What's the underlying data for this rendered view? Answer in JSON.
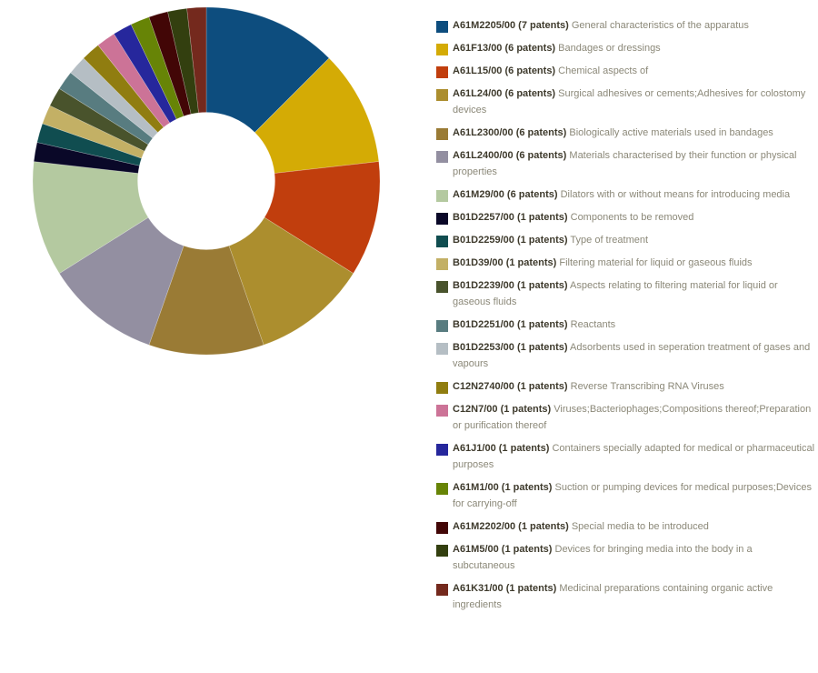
{
  "colors": {
    "background": "#ffffff",
    "legend_code_text": "#3e3a2c",
    "legend_desc_text": "#8b8878"
  },
  "chart_data": {
    "type": "pie",
    "subtype": "donut",
    "direction": "clockwise",
    "start_angle_deg": 0,
    "inner_radius_ratio": 0.4,
    "legend_position": "right",
    "unit": "patents",
    "total": 56,
    "series": [
      {
        "code": "A61M2205/00",
        "value": 7,
        "label": "A61M2205/00 (7 patents)",
        "description": "General characteristics of the apparatus",
        "color": "#0d4d7e"
      },
      {
        "code": "A61F13/00",
        "value": 6,
        "label": "A61F13/00 (6 patents)",
        "description": "Bandages or dressings",
        "color": "#d4ab05"
      },
      {
        "code": "A61L15/00",
        "value": 6,
        "label": "A61L15/00 (6 patents)",
        "description": "Chemical aspects of",
        "color": "#c13e0d"
      },
      {
        "code": "A61L24/00",
        "value": 6,
        "label": "A61L24/00 (6 patents)",
        "description": "Surgical adhesives or cements;Adhesives for colostomy devices",
        "color": "#ac8e2e"
      },
      {
        "code": "A61L2300/00",
        "value": 6,
        "label": "A61L2300/00 (6 patents)",
        "description": "Biologically active materials used in bandages",
        "color": "#9a7b35"
      },
      {
        "code": "A61L2400/00",
        "value": 6,
        "label": "A61L2400/00 (6 patents)",
        "description": "Materials characterised by their function or physical properties",
        "color": "#938fa1"
      },
      {
        "code": "A61M29/00",
        "value": 6,
        "label": "A61M29/00 (6 patents)",
        "description": "Dilators with or without means for introducing media",
        "color": "#b4c9a0"
      },
      {
        "code": "B01D2257/00",
        "value": 1,
        "label": "B01D2257/00 (1 patents)",
        "description": "Components to be removed",
        "color": "#0a0828"
      },
      {
        "code": "B01D2259/00",
        "value": 1,
        "label": "B01D2259/00 (1 patents)",
        "description": "Type of treatment",
        "color": "#104d50"
      },
      {
        "code": "B01D39/00",
        "value": 1,
        "label": "B01D39/00 (1 patents)",
        "description": "Filtering material for liquid or gaseous fluids",
        "color": "#c3b065"
      },
      {
        "code": "B01D2239/00",
        "value": 1,
        "label": "B01D2239/00 (1 patents)",
        "description": "Aspects relating to filtering material for liquid or gaseous fluids",
        "color": "#49532c"
      },
      {
        "code": "B01D2251/00",
        "value": 1,
        "label": "B01D2251/00 (1 patents)",
        "description": "Reactants",
        "color": "#587c80"
      },
      {
        "code": "B01D2253/00",
        "value": 1,
        "label": "B01D2253/00 (1 patents)",
        "description": "Adsorbents used in seperation treatment of gases and vapours",
        "color": "#b5bec4"
      },
      {
        "code": "C12N2740/00",
        "value": 1,
        "label": "C12N2740/00 (1 patents)",
        "description": "Reverse Transcribing RNA Viruses",
        "color": "#907d10"
      },
      {
        "code": "C12N7/00",
        "value": 1,
        "label": "C12N7/00 (1 patents)",
        "description": "Viruses;Bacteriophages;Compositions thereof;Preparation or purification thereof",
        "color": "#cc7397"
      },
      {
        "code": "A61J1/00",
        "value": 1,
        "label": "A61J1/00 (1 patents)",
        "description": "Containers specially adapted for medical or pharmaceutical purposes",
        "color": "#26279c"
      },
      {
        "code": "A61M1/00",
        "value": 1,
        "label": "A61M1/00 (1 patents)",
        "description": "Suction or pumping devices for medical purposes;Devices for carrying-off",
        "color": "#678406"
      },
      {
        "code": "A61M2202/00",
        "value": 1,
        "label": "A61M2202/00 (1 patents)",
        "description": "Special media to be introduced",
        "color": "#420606"
      },
      {
        "code": "A61M5/00",
        "value": 1,
        "label": "A61M5/00 (1 patents)",
        "description": "Devices for bringing media into the body in a subcutaneous",
        "color": "#333f0f"
      },
      {
        "code": "A61K31/00",
        "value": 1,
        "label": "A61K31/00 (1 patents)",
        "description": "Medicinal preparations containing organic active ingredients",
        "color": "#74291d"
      }
    ]
  }
}
